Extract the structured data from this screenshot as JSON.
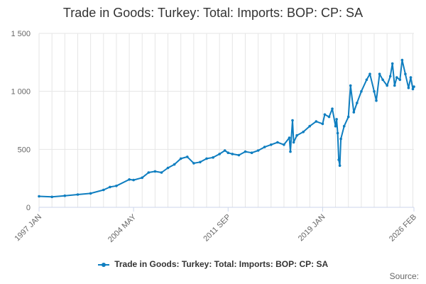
{
  "title": "Trade in Goods: Turkey: Total: Imports: BOP: CP: SA",
  "legend_label": "Trade in Goods: Turkey: Total: Imports: BOP: CP: SA",
  "source_label": "Source:",
  "colors": {
    "series": "#0f7ec0"
  },
  "chart_data": {
    "type": "line",
    "title": "Trade in Goods: Turkey: Total: Imports: BOP: CP: SA",
    "xlabel": "",
    "ylabel": "",
    "ylim": [
      0,
      1500
    ],
    "yticks": [
      0,
      500,
      1000,
      1500
    ],
    "ytick_labels": [
      "0",
      "500",
      "1 000",
      "1 500"
    ],
    "xrange": [
      "1997-01",
      "2026-02"
    ],
    "xticks": [
      "1997-01",
      "2004-05",
      "2011-09",
      "2019-01",
      "2026-02"
    ],
    "xtick_labels": [
      "1997 JAN",
      "2004 MAY",
      "2011 SEP",
      "2019 JAN",
      "2026 FEB"
    ],
    "legend": "bottom",
    "grid": true,
    "series": [
      {
        "name": "Trade in Goods: Turkey: Total: Imports: BOP: CP: SA",
        "points": [
          [
            "1997-01",
            95
          ],
          [
            "1998-01",
            90
          ],
          [
            "1999-01",
            100
          ],
          [
            "2000-01",
            110
          ],
          [
            "2001-01",
            120
          ],
          [
            "2002-01",
            150
          ],
          [
            "2002-07",
            175
          ],
          [
            "2003-01",
            185
          ],
          [
            "2004-01",
            240
          ],
          [
            "2004-05",
            235
          ],
          [
            "2005-01",
            255
          ],
          [
            "2005-07",
            300
          ],
          [
            "2006-01",
            310
          ],
          [
            "2006-07",
            300
          ],
          [
            "2007-01",
            340
          ],
          [
            "2007-07",
            370
          ],
          [
            "2008-01",
            420
          ],
          [
            "2008-07",
            435
          ],
          [
            "2009-01",
            380
          ],
          [
            "2009-07",
            390
          ],
          [
            "2010-01",
            420
          ],
          [
            "2010-07",
            430
          ],
          [
            "2011-01",
            460
          ],
          [
            "2011-06",
            490
          ],
          [
            "2011-09",
            470
          ],
          [
            "2012-01",
            460
          ],
          [
            "2012-07",
            450
          ],
          [
            "2013-01",
            480
          ],
          [
            "2013-07",
            470
          ],
          [
            "2014-01",
            490
          ],
          [
            "2014-07",
            520
          ],
          [
            "2015-01",
            540
          ],
          [
            "2015-07",
            560
          ],
          [
            "2016-01",
            540
          ],
          [
            "2016-06",
            600
          ],
          [
            "2016-07",
            480
          ],
          [
            "2016-09",
            750
          ],
          [
            "2016-10",
            560
          ],
          [
            "2017-01",
            620
          ],
          [
            "2017-07",
            650
          ],
          [
            "2018-01",
            700
          ],
          [
            "2018-07",
            740
          ],
          [
            "2019-01",
            720
          ],
          [
            "2019-03",
            800
          ],
          [
            "2019-07",
            780
          ],
          [
            "2019-10",
            850
          ],
          [
            "2020-01",
            700
          ],
          [
            "2020-02",
            760
          ],
          [
            "2020-03",
            640
          ],
          [
            "2020-04",
            410
          ],
          [
            "2020-05",
            360
          ],
          [
            "2020-06",
            590
          ],
          [
            "2020-09",
            700
          ],
          [
            "2021-01",
            780
          ],
          [
            "2021-03",
            1050
          ],
          [
            "2021-06",
            820
          ],
          [
            "2021-09",
            900
          ],
          [
            "2022-01",
            1000
          ],
          [
            "2022-06",
            1100
          ],
          [
            "2022-09",
            1150
          ],
          [
            "2023-01",
            1000
          ],
          [
            "2023-03",
            920
          ],
          [
            "2023-06",
            1150
          ],
          [
            "2023-09",
            1100
          ],
          [
            "2024-01",
            1050
          ],
          [
            "2024-04",
            1130
          ],
          [
            "2024-06",
            1240
          ],
          [
            "2024-08",
            1050
          ],
          [
            "2024-10",
            1120
          ],
          [
            "2025-01",
            1100
          ],
          [
            "2025-03",
            1270
          ],
          [
            "2025-06",
            1150
          ],
          [
            "2025-09",
            1030
          ],
          [
            "2025-11",
            1120
          ],
          [
            "2026-01",
            1020
          ],
          [
            "2026-02",
            1040
          ]
        ]
      }
    ]
  }
}
